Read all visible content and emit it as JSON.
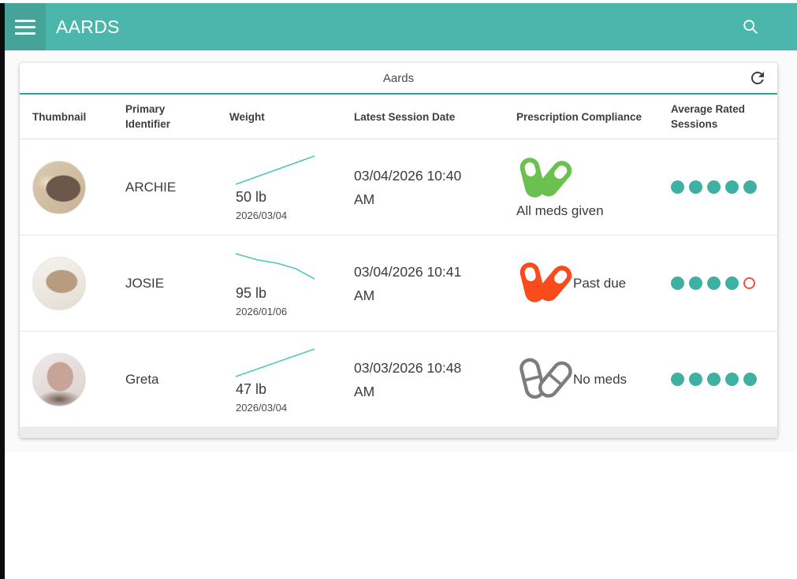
{
  "app": {
    "title": "AARDS",
    "colors": {
      "appbar": "#4db6ac",
      "accent": "#26a69a",
      "sparkline": "#52c7b8",
      "rating_filled": "#3eb1a2",
      "rating_empty_border": "#f4503a",
      "pill_green": "#6cc04f",
      "pill_orange": "#fa4b1c",
      "pill_gray": "#7d7d7d"
    }
  },
  "card": {
    "title": "Aards"
  },
  "table": {
    "columns": [
      "Thumbnail",
      "Primary Identifier",
      "Weight",
      "Latest Session Date",
      "Prescription Compliance",
      "Average Rated Sessions"
    ],
    "rows": [
      {
        "identifier": "ARCHIE",
        "thumbnail": "aardvark photo",
        "weight_value": "50 lb",
        "weight_date": "2026/03/04",
        "weight_trend": "up",
        "sparkline": [
          [
            0,
            40
          ],
          [
            100,
            4
          ]
        ],
        "session_date": "03/04/2026 10:40 AM",
        "compliance_status": "All meds given",
        "compliance_color": "green",
        "rating_filled": 5,
        "rating_total": 5
      },
      {
        "identifier": "JOSIE",
        "thumbnail": "aardvark photo",
        "weight_value": "95 lb",
        "weight_date": "2026/01/06",
        "weight_trend": "down",
        "sparkline": [
          [
            0,
            6
          ],
          [
            28,
            14
          ],
          [
            52,
            18
          ],
          [
            76,
            25
          ],
          [
            100,
            38
          ]
        ],
        "session_date": "03/04/2026 10:41 AM",
        "compliance_status": "Past due",
        "compliance_color": "orange",
        "rating_filled": 4,
        "rating_total": 5
      },
      {
        "identifier": "Greta",
        "thumbnail": "aardvark photo",
        "weight_value": "47 lb",
        "weight_date": "2026/03/04",
        "weight_trend": "up",
        "sparkline": [
          [
            0,
            40
          ],
          [
            100,
            5
          ]
        ],
        "session_date": "03/03/2026 10:48 AM",
        "compliance_status": "No meds",
        "compliance_color": "gray",
        "rating_filled": 5,
        "rating_total": 5
      }
    ]
  }
}
